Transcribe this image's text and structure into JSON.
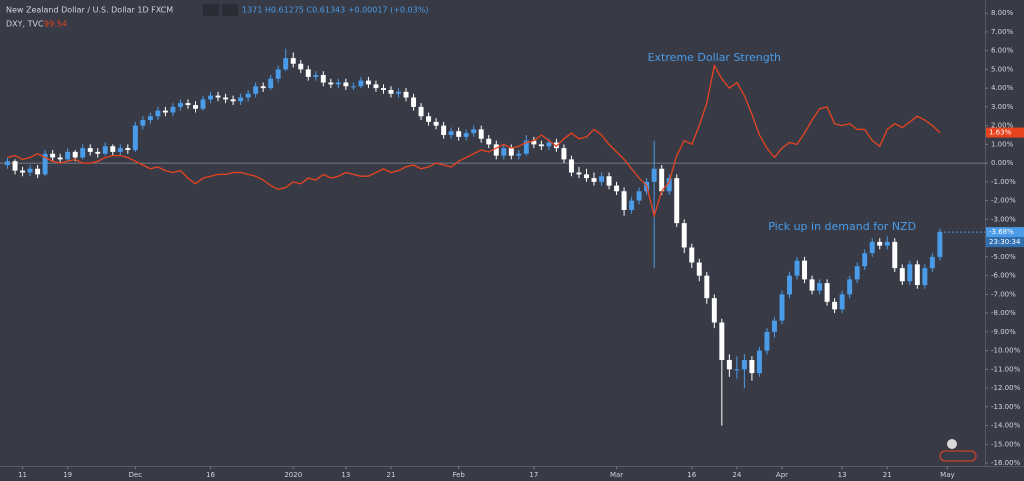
{
  "chart_data": {
    "type": "candlestick",
    "title": "New Zealand Dollar / U.S. Dollar  1D  FXCM",
    "ohlc_text": "1371  H0.61275  C0.61343  +0.00017 (+0.03%)",
    "countdown": "23:30:34",
    "annotations": [
      {
        "text": "Extreme Dollar Strength",
        "at": [
          94,
          5.6
        ]
      },
      {
        "text": "Pick up in demand for NZD",
        "at": [
          111,
          -3.4
        ]
      }
    ],
    "xlim": [
      -1,
      130
    ],
    "ylim": [
      -16.1,
      8.7
    ],
    "reference_line": 0,
    "xticks": [
      {
        "value": 2,
        "label": "11"
      },
      {
        "value": 8,
        "label": "19"
      },
      {
        "value": 17,
        "label": "Dec"
      },
      {
        "value": 27,
        "label": "16"
      },
      {
        "value": 38,
        "label": "2020"
      },
      {
        "value": 45,
        "label": "13"
      },
      {
        "value": 51,
        "label": "21"
      },
      {
        "value": 60,
        "label": "Feb"
      },
      {
        "value": 70,
        "label": "17"
      },
      {
        "value": 81,
        "label": "Mar"
      },
      {
        "value": 91,
        "label": "16"
      },
      {
        "value": 97,
        "label": "24"
      },
      {
        "value": 103,
        "label": "Apr"
      },
      {
        "value": 111,
        "label": "13"
      },
      {
        "value": 117,
        "label": "21"
      },
      {
        "value": 125,
        "label": "May"
      }
    ],
    "yticks": [
      {
        "value": 8,
        "label": "8.00%"
      },
      {
        "value": 7,
        "label": "7.00%"
      },
      {
        "value": 6,
        "label": "6.00%"
      },
      {
        "value": 5,
        "label": "5.00%"
      },
      {
        "value": 4,
        "label": "4.00%"
      },
      {
        "value": 3,
        "label": "3.00%"
      },
      {
        "value": 2,
        "label": "2.00%"
      },
      {
        "value": 1,
        "label": "1.00%"
      },
      {
        "value": 0,
        "label": "0.00%"
      },
      {
        "value": -1,
        "label": "-1.00%"
      },
      {
        "value": -2,
        "label": "-2.00%"
      },
      {
        "value": -3,
        "label": "-3.00%"
      },
      {
        "value": -4,
        "label": "-4.00%"
      },
      {
        "value": -5,
        "label": "-5.00%"
      },
      {
        "value": -6,
        "label": "-6.00%"
      },
      {
        "value": -7,
        "label": "-7.00%"
      },
      {
        "value": -8,
        "label": "-8.00%"
      },
      {
        "value": -9,
        "label": "-9.00%"
      },
      {
        "value": -10,
        "label": "-10.00%"
      },
      {
        "value": -11,
        "label": "-11.00%"
      },
      {
        "value": -12,
        "label": "-12.00%"
      },
      {
        "value": -13,
        "label": "-13.00%"
      },
      {
        "value": -14,
        "label": "-14.00%"
      },
      {
        "value": -15,
        "label": "-15.00%"
      },
      {
        "value": -16,
        "label": "-16.00%"
      }
    ],
    "series": [
      {
        "name": "New Zealand Dollar / U.S. Dollar",
        "type": "candlestick",
        "up_color": "#4a9be8",
        "down_color": "#ffffff",
        "last_label": "-3.68%",
        "ohlc": [
          [
            -0.1,
            0.3,
            -0.3,
            0.1
          ],
          [
            0.1,
            0.2,
            -0.6,
            -0.4
          ],
          [
            -0.4,
            -0.2,
            -0.7,
            -0.5
          ],
          [
            -0.5,
            -0.1,
            -0.7,
            -0.3
          ],
          [
            -0.3,
            -0.1,
            -0.8,
            -0.6
          ],
          [
            -0.6,
            0.7,
            -0.7,
            0.5
          ],
          [
            0.5,
            0.7,
            0.1,
            0.3
          ],
          [
            0.3,
            0.5,
            0.0,
            0.2
          ],
          [
            0.2,
            0.8,
            0.1,
            0.6
          ],
          [
            0.6,
            0.7,
            0.1,
            0.3
          ],
          [
            0.3,
            1.0,
            0.2,
            0.8
          ],
          [
            0.8,
            1.0,
            0.4,
            0.6
          ],
          [
            0.6,
            0.8,
            0.3,
            0.5
          ],
          [
            0.5,
            1.1,
            0.4,
            0.9
          ],
          [
            0.9,
            1.0,
            0.4,
            0.6
          ],
          [
            0.6,
            1.0,
            0.4,
            0.8
          ],
          [
            0.8,
            1.0,
            0.5,
            0.7
          ],
          [
            0.7,
            2.2,
            0.6,
            2.0
          ],
          [
            2.0,
            2.5,
            1.8,
            2.3
          ],
          [
            2.3,
            2.7,
            2.1,
            2.5
          ],
          [
            2.5,
            3.0,
            2.3,
            2.8
          ],
          [
            2.8,
            3.0,
            2.5,
            2.7
          ],
          [
            2.7,
            3.2,
            2.5,
            3.0
          ],
          [
            3.0,
            3.4,
            2.8,
            3.2
          ],
          [
            3.2,
            3.4,
            2.9,
            3.1
          ],
          [
            3.1,
            3.3,
            2.7,
            2.9
          ],
          [
            2.9,
            3.6,
            2.8,
            3.4
          ],
          [
            3.4,
            3.8,
            3.2,
            3.6
          ],
          [
            3.6,
            3.8,
            3.3,
            3.5
          ],
          [
            3.5,
            3.7,
            3.2,
            3.4
          ],
          [
            3.4,
            3.6,
            3.1,
            3.3
          ],
          [
            3.3,
            3.7,
            3.1,
            3.5
          ],
          [
            3.5,
            3.9,
            3.3,
            3.7
          ],
          [
            3.7,
            4.3,
            3.5,
            4.1
          ],
          [
            4.1,
            4.3,
            3.8,
            4.0
          ],
          [
            4.0,
            4.7,
            3.9,
            4.5
          ],
          [
            4.5,
            5.2,
            4.3,
            5.0
          ],
          [
            5.0,
            6.1,
            4.9,
            5.6
          ],
          [
            5.6,
            5.9,
            5.1,
            5.3
          ],
          [
            5.3,
            5.5,
            4.8,
            5.0
          ],
          [
            5.0,
            5.2,
            4.4,
            4.6
          ],
          [
            4.6,
            4.9,
            4.4,
            4.7
          ],
          [
            4.7,
            4.9,
            4.1,
            4.3
          ],
          [
            4.3,
            4.5,
            4.0,
            4.2
          ],
          [
            4.2,
            4.5,
            4.0,
            4.3
          ],
          [
            4.3,
            4.5,
            3.9,
            4.1
          ],
          [
            4.1,
            4.3,
            3.9,
            4.1
          ],
          [
            4.1,
            4.6,
            4.0,
            4.4
          ],
          [
            4.4,
            4.6,
            4.0,
            4.2
          ],
          [
            4.2,
            4.4,
            3.8,
            4.0
          ],
          [
            4.0,
            4.2,
            3.7,
            3.9
          ],
          [
            3.9,
            4.1,
            3.5,
            3.7
          ],
          [
            3.7,
            4.0,
            3.5,
            3.8
          ],
          [
            3.8,
            4.0,
            3.3,
            3.5
          ],
          [
            3.5,
            3.7,
            2.8,
            3.0
          ],
          [
            3.0,
            3.2,
            2.3,
            2.5
          ],
          [
            2.5,
            2.7,
            2.0,
            2.2
          ],
          [
            2.2,
            2.4,
            1.8,
            2.0
          ],
          [
            2.0,
            2.2,
            1.3,
            1.5
          ],
          [
            1.5,
            1.9,
            1.3,
            1.7
          ],
          [
            1.7,
            1.9,
            1.2,
            1.4
          ],
          [
            1.4,
            1.8,
            1.2,
            1.6
          ],
          [
            1.6,
            2.0,
            1.4,
            1.8
          ],
          [
            1.8,
            2.0,
            1.1,
            1.3
          ],
          [
            1.3,
            1.5,
            0.8,
            1.0
          ],
          [
            1.0,
            1.2,
            0.2,
            0.4
          ],
          [
            0.4,
            1.0,
            0.2,
            0.8
          ],
          [
            0.8,
            1.0,
            0.2,
            0.4
          ],
          [
            0.4,
            0.7,
            0.2,
            0.5
          ],
          [
            0.5,
            1.5,
            0.4,
            1.2
          ],
          [
            1.2,
            1.4,
            0.8,
            1.0
          ],
          [
            1.0,
            1.2,
            0.7,
            0.9
          ],
          [
            0.9,
            1.3,
            0.7,
            1.1
          ],
          [
            1.1,
            1.3,
            0.6,
            0.8
          ],
          [
            0.8,
            1.0,
            0.0,
            0.2
          ],
          [
            0.2,
            0.4,
            -0.7,
            -0.5
          ],
          [
            -0.5,
            -0.2,
            -0.8,
            -0.6
          ],
          [
            -0.6,
            -0.3,
            -1.0,
            -0.8
          ],
          [
            -0.8,
            -0.5,
            -1.2,
            -1.0
          ],
          [
            -1.0,
            -0.5,
            -1.2,
            -0.7
          ],
          [
            -0.7,
            -0.5,
            -1.4,
            -1.2
          ],
          [
            -1.2,
            -1.0,
            -1.7,
            -1.5
          ],
          [
            -1.5,
            -1.3,
            -2.8,
            -2.5
          ],
          [
            -2.5,
            -1.8,
            -2.7,
            -2.0
          ],
          [
            -2.0,
            -1.3,
            -2.2,
            -1.5
          ],
          [
            -1.5,
            -0.8,
            -1.7,
            -1.0
          ],
          [
            -1.0,
            1.2,
            -5.6,
            -0.3
          ],
          [
            -0.3,
            -0.1,
            -1.7,
            -1.5
          ],
          [
            -1.5,
            -0.6,
            -1.7,
            -0.8
          ],
          [
            -0.8,
            -0.6,
            -3.4,
            -3.2
          ],
          [
            -3.2,
            -3.0,
            -4.8,
            -4.5
          ],
          [
            -4.5,
            -4.3,
            -5.6,
            -5.3
          ],
          [
            -5.3,
            -5.1,
            -6.3,
            -6.0
          ],
          [
            -6.0,
            -5.8,
            -7.5,
            -7.2
          ],
          [
            -7.2,
            -7.0,
            -8.8,
            -8.5
          ],
          [
            -8.5,
            -8.3,
            -14.0,
            -10.5
          ],
          [
            -10.5,
            -10.2,
            -11.4,
            -11.0
          ],
          [
            -11.0,
            -10.3,
            -11.5,
            -11.0
          ],
          [
            -11.0,
            -10.2,
            -12.0,
            -10.5
          ],
          [
            -10.5,
            -10.3,
            -11.6,
            -11.2
          ],
          [
            -11.2,
            -9.8,
            -11.4,
            -10.0
          ],
          [
            -10.0,
            -8.8,
            -10.2,
            -9.0
          ],
          [
            -9.0,
            -8.2,
            -9.3,
            -8.4
          ],
          [
            -8.4,
            -6.8,
            -8.6,
            -7.0
          ],
          [
            -7.0,
            -5.8,
            -7.2,
            -6.0
          ],
          [
            -6.0,
            -5.0,
            -6.2,
            -5.2
          ],
          [
            -5.2,
            -5.0,
            -6.4,
            -6.2
          ],
          [
            -6.2,
            -6.0,
            -7.0,
            -6.8
          ],
          [
            -6.8,
            -6.2,
            -7.0,
            -6.4
          ],
          [
            -6.4,
            -6.2,
            -7.6,
            -7.4
          ],
          [
            -7.4,
            -7.2,
            -8.0,
            -7.8
          ],
          [
            -7.8,
            -6.8,
            -8.0,
            -7.0
          ],
          [
            -7.0,
            -6.0,
            -7.2,
            -6.2
          ],
          [
            -6.2,
            -5.3,
            -6.4,
            -5.5
          ],
          [
            -5.5,
            -4.6,
            -5.7,
            -4.8
          ],
          [
            -4.8,
            -4.0,
            -5.0,
            -4.2
          ],
          [
            -4.2,
            -4.0,
            -4.6,
            -4.4
          ],
          [
            -4.4,
            -3.9,
            -4.6,
            -4.2
          ],
          [
            -4.2,
            -4.0,
            -5.8,
            -5.6
          ],
          [
            -5.6,
            -5.4,
            -6.5,
            -6.3
          ],
          [
            -6.3,
            -5.2,
            -6.5,
            -5.4
          ],
          [
            -5.4,
            -5.2,
            -6.7,
            -6.5
          ],
          [
            -6.5,
            -5.4,
            -6.7,
            -5.6
          ],
          [
            -5.6,
            -4.8,
            -5.8,
            -5.0
          ],
          [
            -5.0,
            -3.5,
            -5.2,
            -3.68
          ]
        ]
      },
      {
        "name": "DXY, TVC",
        "type": "line",
        "color": "#e8431f",
        "value_text": "99.54",
        "last_label": "1.63%",
        "values": [
          0.3,
          0.4,
          0.2,
          0.3,
          0.5,
          0.3,
          0.1,
          0.0,
          0.1,
          0.2,
          0.0,
          0.0,
          0.1,
          0.3,
          0.4,
          0.4,
          0.3,
          0.1,
          -0.1,
          -0.3,
          -0.2,
          -0.4,
          -0.5,
          -0.4,
          -0.8,
          -1.1,
          -0.8,
          -0.7,
          -0.6,
          -0.6,
          -0.5,
          -0.5,
          -0.6,
          -0.7,
          -0.9,
          -1.2,
          -1.4,
          -1.3,
          -1.0,
          -1.1,
          -0.8,
          -0.9,
          -0.6,
          -0.8,
          -0.7,
          -0.5,
          -0.6,
          -0.7,
          -0.7,
          -0.5,
          -0.3,
          -0.5,
          -0.4,
          -0.2,
          -0.1,
          -0.3,
          -0.2,
          0.0,
          -0.1,
          -0.2,
          0.1,
          0.3,
          0.5,
          0.7,
          0.6,
          0.8,
          1.0,
          0.8,
          0.9,
          1.1,
          1.2,
          1.5,
          1.2,
          0.9,
          1.3,
          1.6,
          1.3,
          1.4,
          1.8,
          1.5,
          1.0,
          0.6,
          0.2,
          -0.3,
          -0.8,
          -1.2,
          -2.8,
          -1.5,
          -1.0,
          0.4,
          1.2,
          1.0,
          2.0,
          3.2,
          5.2,
          4.5,
          4.0,
          4.3,
          3.6,
          2.6,
          1.5,
          0.8,
          0.3,
          0.8,
          1.1,
          1.0,
          1.6,
          2.3,
          2.9,
          3.0,
          2.1,
          2.0,
          2.1,
          1.8,
          1.8,
          1.2,
          0.9,
          1.8,
          2.1,
          1.9,
          2.2,
          2.5,
          2.3,
          2.0,
          1.63
        ]
      }
    ]
  }
}
